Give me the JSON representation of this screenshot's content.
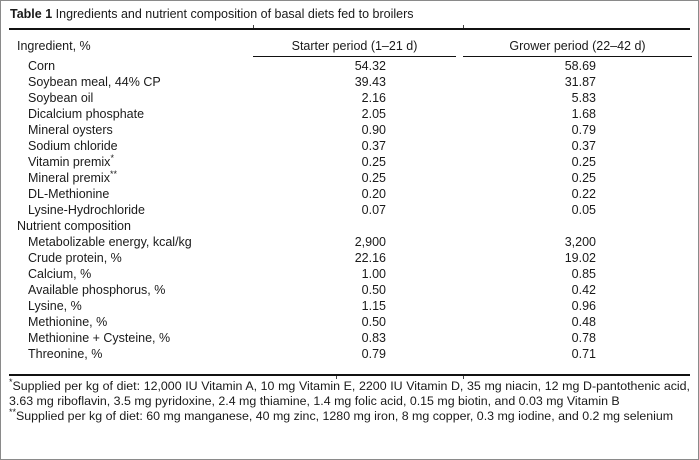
{
  "caption": {
    "label": "Table 1",
    "text": "Ingredients and nutrient composition of basal diets fed to broilers"
  },
  "table": {
    "columns": [
      "Ingredient, %",
      "Starter period (1–21 d)",
      "Grower period (22–42 d)"
    ],
    "rows": [
      {
        "label": "Corn",
        "starter": "54.32",
        "grower": "58.69"
      },
      {
        "label": "Soybean meal, 44% CP",
        "starter": "39.43",
        "grower": "31.87"
      },
      {
        "label": "Soybean oil",
        "starter": "2.16",
        "grower": "5.83"
      },
      {
        "label": "Dicalcium phosphate",
        "starter": "2.05",
        "grower": "1.68"
      },
      {
        "label": "Mineral oysters",
        "starter": "0.90",
        "grower": "0.79"
      },
      {
        "label": "Sodium chloride",
        "starter": "0.37",
        "grower": "0.37"
      },
      {
        "label": "Vitamin premix",
        "marker": "*",
        "starter": "0.25",
        "grower": "0.25"
      },
      {
        "label": "Mineral premix",
        "marker": "**",
        "starter": "0.25",
        "grower": "0.25"
      },
      {
        "label": "DL-Methionine",
        "starter": "0.20",
        "grower": "0.22"
      },
      {
        "label": "Lysine-Hydrochloride",
        "starter": "0.07",
        "grower": "0.05"
      },
      {
        "label": "Nutrient composition",
        "section": true,
        "starter": "",
        "grower": ""
      },
      {
        "label": "Metabolizable energy, kcal/kg",
        "starter": "2,900",
        "grower": "3,200"
      },
      {
        "label": "Crude protein, %",
        "starter": "22.16",
        "grower": "19.02"
      },
      {
        "label": "Calcium, %",
        "starter": "1.00",
        "grower": "0.85"
      },
      {
        "label": "Available phosphorus, %",
        "starter": "0.50",
        "grower": "0.42"
      },
      {
        "label": "Lysine, %",
        "starter": "1.15",
        "grower": "0.96"
      },
      {
        "label": "Methionine, %",
        "starter": "0.50",
        "grower": "0.48"
      },
      {
        "label": "Methionine + Cysteine, %",
        "starter": "0.83",
        "grower": "0.78"
      },
      {
        "label": "Threonine, %",
        "starter": "0.79",
        "grower": "0.71"
      }
    ]
  },
  "footnotes": [
    {
      "marker": "*",
      "text": "Supplied per kg of diet: 12,000 IU Vitamin A, 10 mg Vitamin E, 2200 IU Vitamin D, 35 mg niacin, 12 mg D-pantothenic acid, 3.63 mg riboflavin, 3.5 mg pyridoxine, 2.4 mg thiamine, 1.4 mg folic acid, 0.15 mg biotin, and 0.03 mg Vitamin B"
    },
    {
      "marker": "**",
      "text": "Supplied per kg of diet: 60 mg manganese, 40 mg zinc, 1280 mg iron, 8 mg copper, 0.3 mg iodine, and 0.2 mg selenium"
    }
  ],
  "colors": {
    "text": "#1a1a1a",
    "rule": "#111111",
    "background": "#ffffff"
  }
}
